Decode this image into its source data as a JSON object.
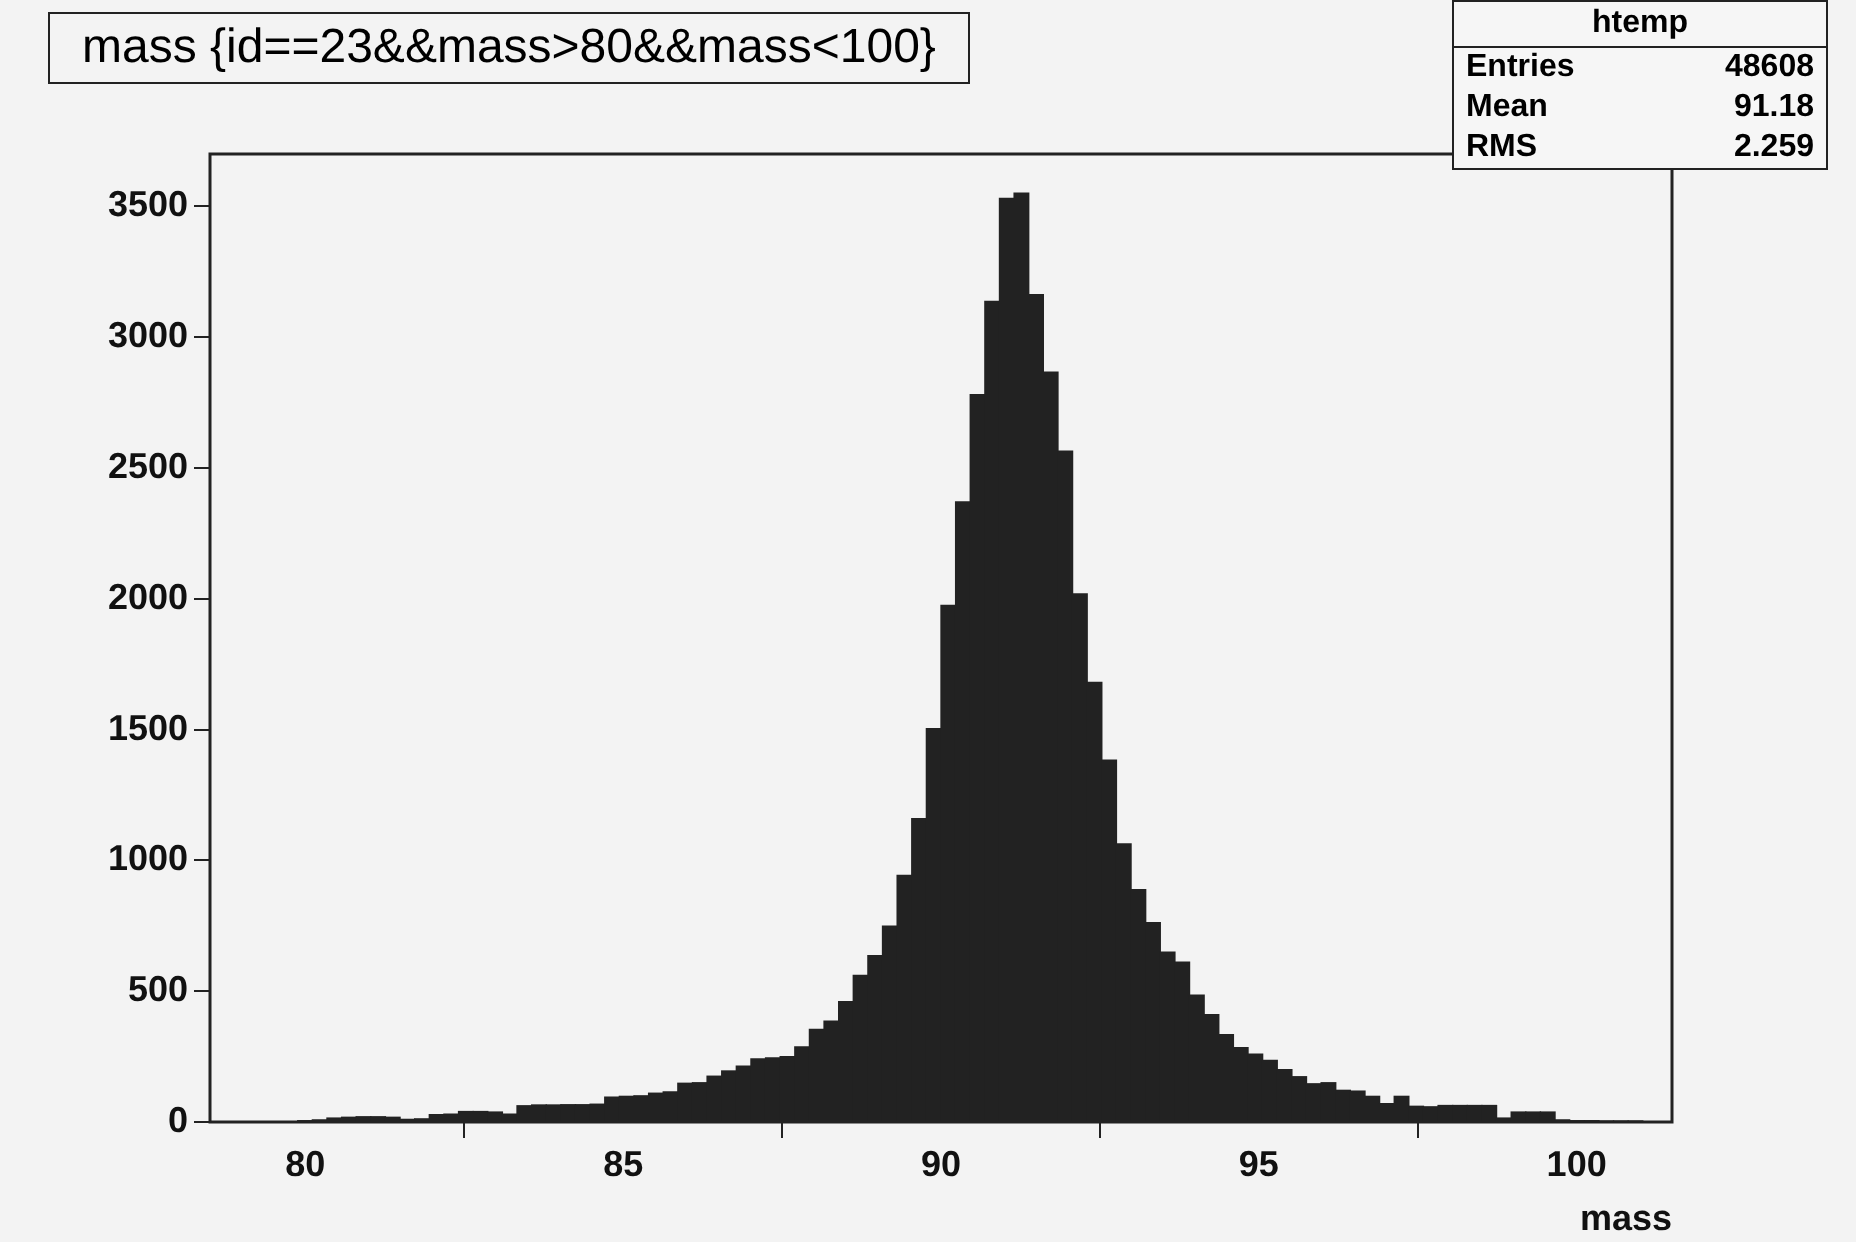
{
  "chart_data": {
    "type": "histogram",
    "title": "mass {id==23&&mass>80&&mass<100}",
    "xlabel": "mass",
    "annotations": [
      "htemp",
      "Entries 48608",
      "Mean 91.18",
      "RMS 2.259"
    ],
    "bins": [
      78.5,
      78.73,
      78.96,
      79.19,
      79.42,
      79.65,
      79.88,
      80.11,
      80.34,
      80.57,
      80.8,
      81.03,
      81.26,
      81.49,
      81.72,
      81.95,
      82.18,
      82.41,
      82.64,
      82.87,
      83.1,
      83.33,
      83.56,
      83.79,
      84.02,
      84.25,
      84.48,
      84.71,
      84.94,
      85.17,
      85.4,
      85.63,
      85.86,
      86.09,
      86.32,
      86.55,
      86.78,
      87.01,
      87.24,
      87.47,
      87.7,
      87.93,
      88.16,
      88.39,
      88.62,
      88.85,
      89.08,
      89.31,
      89.54,
      89.77,
      90,
      90.23,
      90.46,
      90.69,
      90.92,
      91.15,
      91.38,
      91.61,
      91.84,
      92.07,
      92.3,
      92.53,
      92.76,
      92.99,
      93.22,
      93.45,
      93.68,
      93.91,
      94.14,
      94.37,
      94.6,
      94.83,
      95.06,
      95.29,
      95.52,
      95.75,
      95.98,
      96.21,
      96.44,
      96.67,
      96.9,
      97.13,
      97.36,
      97.59,
      97.82,
      98.05,
      98.28,
      98.51,
      98.74,
      98.97,
      99.2,
      99.43,
      99.66,
      99.89,
      100.12,
      100.35,
      100.58,
      100.81,
      101.04,
      101.27,
      101.5
    ],
    "values": [
      0,
      0,
      0,
      0,
      0,
      0,
      5,
      8,
      15,
      18,
      20,
      20,
      18,
      10,
      12,
      28,
      30,
      40,
      40,
      38,
      30,
      62,
      65,
      65,
      66,
      66,
      68,
      95,
      98,
      100,
      110,
      115,
      148,
      150,
      175,
      195,
      213,
      241,
      245,
      250,
      287,
      354,
      385,
      460,
      560,
      636,
      749,
      943,
      1159,
      1503,
      1975,
      2370,
      2780,
      3137,
      3530,
      3550,
      3162,
      2866,
      2564,
      2019,
      1680,
      1383,
      1063,
      888,
      762,
      649,
      611,
      485,
      410,
      334,
      284,
      259,
      235,
      200,
      173,
      146,
      150,
      121,
      118,
      98,
      70,
      98,
      60,
      58,
      63,
      63,
      63,
      63,
      15,
      38,
      38,
      38,
      8,
      5,
      5,
      3,
      3,
      2,
      0,
      0
    ],
    "color": "#222222",
    "xlim": [
      78.5,
      101.5
    ],
    "xticks": [
      80,
      85,
      90,
      95,
      100
    ],
    "ylim": [
      0,
      3700
    ],
    "yticks": [
      0,
      500,
      1000,
      1500,
      2000,
      2500,
      3000,
      3500
    ],
    "grid": false,
    "legend": false
  }
}
